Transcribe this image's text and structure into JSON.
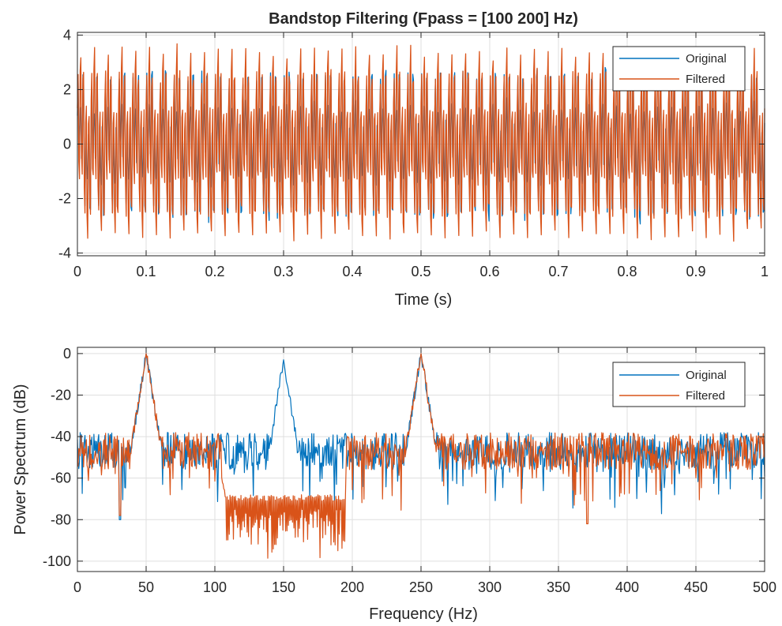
{
  "colors": {
    "original": "#0072BD",
    "filtered": "#D95319",
    "grid": "#dfdfdf",
    "axis": "#262626"
  },
  "chart_data": [
    {
      "type": "line",
      "title": "Bandstop Filtering  (Fpass = [100 200] Hz)",
      "xlabel": "Time (s)",
      "ylabel": "",
      "xlim": [
        0,
        1
      ],
      "ylim": [
        -4.1,
        4.1
      ],
      "xticks": [
        0,
        0.1,
        0.2,
        0.3,
        0.4,
        0.5,
        0.6,
        0.7,
        0.8,
        0.9,
        1
      ],
      "xtick_labels": [
        "0",
        "0.1",
        "0.2",
        "0.3",
        "0.4",
        "0.5",
        "0.6",
        "0.7",
        "0.8",
        "0.9",
        "1"
      ],
      "yticks": [
        -4,
        -2,
        0,
        2,
        4
      ],
      "ytick_labels": [
        "-4",
        "-2",
        "0",
        "2",
        "4"
      ],
      "grid": true,
      "legend": {
        "placement": "top-right",
        "entries": [
          "Original",
          "Filtered"
        ]
      },
      "series": [
        {
          "name": "Original",
          "color": "#0072BD",
          "signal": {
            "components": [
              {
                "freq_hz": 50,
                "amp": 1.0
              },
              {
                "freq_hz": 150,
                "amp": 1.0
              },
              {
                "freq_hz": 250,
                "amp": 1.6
              }
            ],
            "noise_std": 0.15,
            "sample_rate_hz": 1000,
            "duration_s": 1
          }
        },
        {
          "name": "Filtered",
          "color": "#D95319",
          "signal": {
            "components": [
              {
                "freq_hz": 50,
                "amp": 1.2
              },
              {
                "freq_hz": 250,
                "amp": 2.6
              }
            ],
            "noise_std": 0.12,
            "sample_rate_hz": 1000,
            "duration_s": 1
          }
        }
      ]
    },
    {
      "type": "line",
      "title": "",
      "xlabel": "Frequency (Hz)",
      "ylabel": "Power Spectrum (dB)",
      "xlim": [
        0,
        500
      ],
      "ylim": [
        -105,
        3
      ],
      "xticks": [
        0,
        50,
        100,
        150,
        200,
        250,
        300,
        350,
        400,
        450,
        500
      ],
      "xtick_labels": [
        "0",
        "50",
        "100",
        "150",
        "200",
        "250",
        "300",
        "350",
        "400",
        "450",
        "500"
      ],
      "yticks": [
        -100,
        -80,
        -60,
        -40,
        -20,
        0
      ],
      "ytick_labels": [
        "-100",
        "-80",
        "-60",
        "-40",
        "-20",
        "0"
      ],
      "grid": true,
      "legend": {
        "placement": "top-right",
        "entries": [
          "Original",
          "Filtered"
        ]
      },
      "series": [
        {
          "name": "Original",
          "color": "#0072BD",
          "spectrum": {
            "floor_db": -47,
            "noise_span_db": 18,
            "peaks": [
              {
                "freq_hz": 50,
                "db": 0
              },
              {
                "freq_hz": 150,
                "db": -3
              },
              {
                "freq_hz": 250,
                "db": 0
              }
            ],
            "bandstop": null,
            "dips": [
              {
                "freq_hz": 31,
                "db": -80
              }
            ]
          }
        },
        {
          "name": "Filtered",
          "color": "#D95319",
          "spectrum": {
            "floor_db": -47,
            "noise_span_db": 18,
            "peaks": [
              {
                "freq_hz": 50,
                "db": 0
              },
              {
                "freq_hz": 250,
                "db": 0
              }
            ],
            "bandstop": {
              "from_hz": 105,
              "to_hz": 195,
              "top_db": -68,
              "bottom_db": -102
            },
            "dips": [
              {
                "freq_hz": 31,
                "db": -78
              },
              {
                "freq_hz": 371,
                "db": -82
              }
            ]
          }
        }
      ]
    }
  ]
}
